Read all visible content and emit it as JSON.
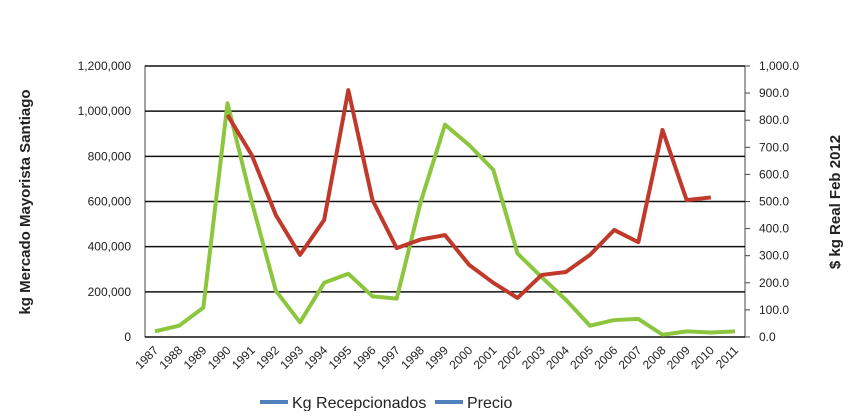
{
  "chart_data": {
    "type": "line",
    "ylabel": "kg Mercado Mayorista Santiago",
    "y2label": "$ kg Real Feb 2012",
    "x": [
      "1987",
      "1988",
      "1989",
      "1990",
      "1991",
      "1992",
      "1993",
      "1994",
      "1995",
      "1996",
      "1997",
      "1998",
      "1999",
      "2000",
      "2001",
      "2002",
      "2003",
      "2004",
      "2005",
      "2006",
      "2007",
      "2008",
      "2009",
      "2010",
      "2011"
    ],
    "series": [
      {
        "name": "Kg Recepcionados",
        "color": "#8cc63f",
        "axis": "y",
        "values": [
          25000,
          50000,
          130000,
          1035000,
          600000,
          205000,
          65000,
          240000,
          280000,
          180000,
          170000,
          600000,
          940000,
          850000,
          740000,
          370000,
          265000,
          165000,
          50000,
          75000,
          80000,
          10000,
          25000,
          20000,
          25000
        ]
      },
      {
        "name": "Precio",
        "color": "#c0392b",
        "axis": "y2",
        "values": [
          null,
          null,
          null,
          819,
          672,
          450,
          303,
          432,
          911,
          505,
          328,
          360,
          376,
          266,
          200,
          144,
          229,
          240,
          303,
          395,
          350,
          764,
          505,
          515,
          null
        ]
      }
    ],
    "legend_color": "#4f81bd",
    "ylim": [
      0,
      1200000
    ],
    "yticks": [
      0,
      {
        "value": 200000,
        "label": "200,000"
      },
      {
        "value": 400000,
        "label": "400,000"
      },
      {
        "value": 600000,
        "label": "600,000"
      },
      {
        "value": 800000,
        "label": "800,000"
      },
      {
        "value": 1000000,
        "label": "1,000,000"
      },
      {
        "value": 1200000,
        "label": "1,200,000"
      }
    ],
    "y2lim": [
      0,
      1000
    ],
    "y2ticks": [
      {
        "value": 0,
        "label": "0.0"
      },
      {
        "value": 100,
        "label": "100.0"
      },
      {
        "value": 200,
        "label": "200.0"
      },
      {
        "value": 300,
        "label": "300.0"
      },
      {
        "value": 400,
        "label": "400.0"
      },
      {
        "value": 500,
        "label": "500.0"
      },
      {
        "value": 600,
        "label": "600.0"
      },
      {
        "value": 700,
        "label": "700.0"
      },
      {
        "value": 800,
        "label": "800.0"
      },
      {
        "value": 900,
        "label": "900.0"
      },
      {
        "value": 1000,
        "label": "1,000.0"
      }
    ],
    "grid": true
  }
}
